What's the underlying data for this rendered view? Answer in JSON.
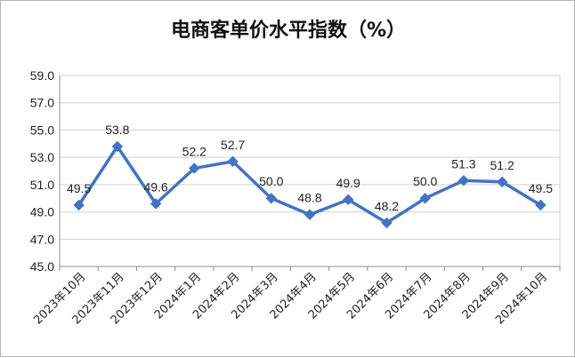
{
  "chart_data": {
    "type": "line",
    "title": "电商客单价水平指数（%）",
    "categories": [
      "2023年10月",
      "2023年11月",
      "2023年12月",
      "2024年1月",
      "2024年2月",
      "2024年3月",
      "2024年4月",
      "2024年5月",
      "2024年6月",
      "2024年7月",
      "2024年8月",
      "2024年9月",
      "2024年10月"
    ],
    "values": [
      49.5,
      53.8,
      49.6,
      52.2,
      52.7,
      50.0,
      48.8,
      49.9,
      48.2,
      50.0,
      51.3,
      51.2,
      49.5
    ],
    "value_labels": [
      "49.5",
      "53.8",
      "49.6",
      "52.2",
      "52.7",
      "50.0",
      "48.8",
      "49.9",
      "48.2",
      "50.0",
      "51.3",
      "51.2",
      "49.5"
    ],
    "ylim": [
      45.0,
      59.0
    ],
    "yticks": [
      "45.0",
      "47.0",
      "49.0",
      "51.0",
      "53.0",
      "55.0",
      "57.0",
      "59.0"
    ],
    "grid": true,
    "legend": "none",
    "line_color": "#4472c4",
    "marker": "diamond"
  }
}
